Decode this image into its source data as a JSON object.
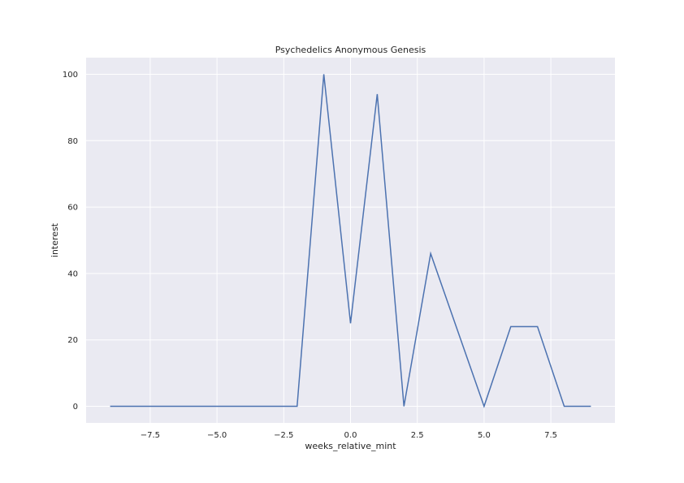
{
  "chart_data": {
    "type": "line",
    "title": "Psychedelics Anonymous Genesis",
    "xlabel": "weeks_relative_mint",
    "ylabel": "interest",
    "xlim": [
      -9.9,
      9.9
    ],
    "ylim": [
      -5,
      105
    ],
    "xticks": [
      -7.5,
      -5.0,
      -2.5,
      0.0,
      2.5,
      5.0,
      7.5
    ],
    "xtick_labels": [
      "−7.5",
      "−5.0",
      "−2.5",
      "0.0",
      "2.5",
      "5.0",
      "7.5"
    ],
    "yticks": [
      0,
      20,
      40,
      60,
      80,
      100
    ],
    "ytick_labels": [
      "0",
      "20",
      "40",
      "60",
      "80",
      "100"
    ],
    "grid": true,
    "series": [
      {
        "color": "#4c72b0",
        "x": [
          -9,
          -8,
          -7,
          -6,
          -5,
          -4,
          -3,
          -2,
          -1,
          0,
          1,
          2,
          3,
          4,
          5,
          6,
          7,
          8,
          9
        ],
        "y": [
          0,
          0,
          0,
          0,
          0,
          0,
          0,
          0,
          100,
          25,
          94,
          0,
          46,
          23,
          0,
          24,
          24,
          0,
          0
        ]
      }
    ]
  }
}
